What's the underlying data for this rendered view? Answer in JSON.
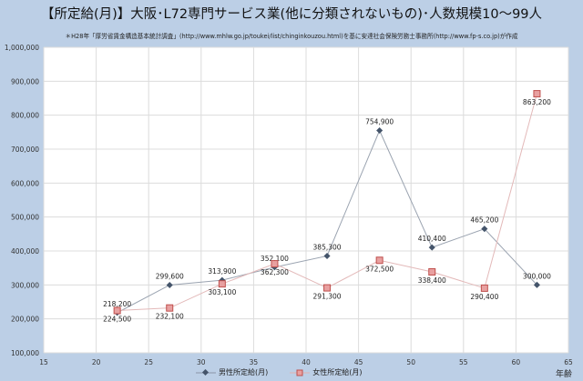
{
  "chart_data": {
    "type": "line",
    "title": "【所定給(月)】大阪･L72専門サービス業(他に分類されないもの)･人数規模10～99人",
    "subtitle": "＊H28年「厚労省賃金構造基本統計調査」(http://www.mhlw.go.jp/toukei/list/chinginkouzou.html)を基に安達社会保険労務士事務所(http://www.fp-s.co.jp)が作成",
    "xlabel": "年齢",
    "ylabel": "",
    "x": [
      22,
      27,
      32,
      37,
      42,
      47,
      52,
      57,
      62
    ],
    "xlim": [
      15,
      65
    ],
    "ylim": [
      100000,
      1000000
    ],
    "xticks": [
      "15",
      "20",
      "25",
      "30",
      "35",
      "40",
      "45",
      "50",
      "55",
      "60",
      "65"
    ],
    "yticks": [
      "100,000",
      "200,000",
      "300,000",
      "400,000",
      "500,000",
      "600,000",
      "700,000",
      "800,000",
      "900,000",
      "1,000,000"
    ],
    "grid": true,
    "legend_position": "bottom",
    "series": [
      {
        "name": "男性所定給(月)",
        "color": "#44546a",
        "marker": "diamond",
        "values": [
          218200,
          299600,
          313900,
          352100,
          385300,
          754900,
          410400,
          465200,
          300000
        ],
        "labels": [
          "218,200",
          "299,600",
          "313,900",
          "352,100",
          "385,300",
          "754,900",
          "410,400",
          "465,200",
          "300,000"
        ]
      },
      {
        "name": "女性所定給(月)",
        "color": "#e07b7b",
        "marker": "square",
        "values": [
          224500,
          232100,
          303100,
          362300,
          291300,
          372500,
          338400,
          290400,
          863200
        ],
        "labels": [
          "224,500",
          "232,100",
          "303,100",
          "362,300",
          "291,300",
          "372,500",
          "338,400",
          "290,400",
          "863,200"
        ]
      }
    ]
  }
}
